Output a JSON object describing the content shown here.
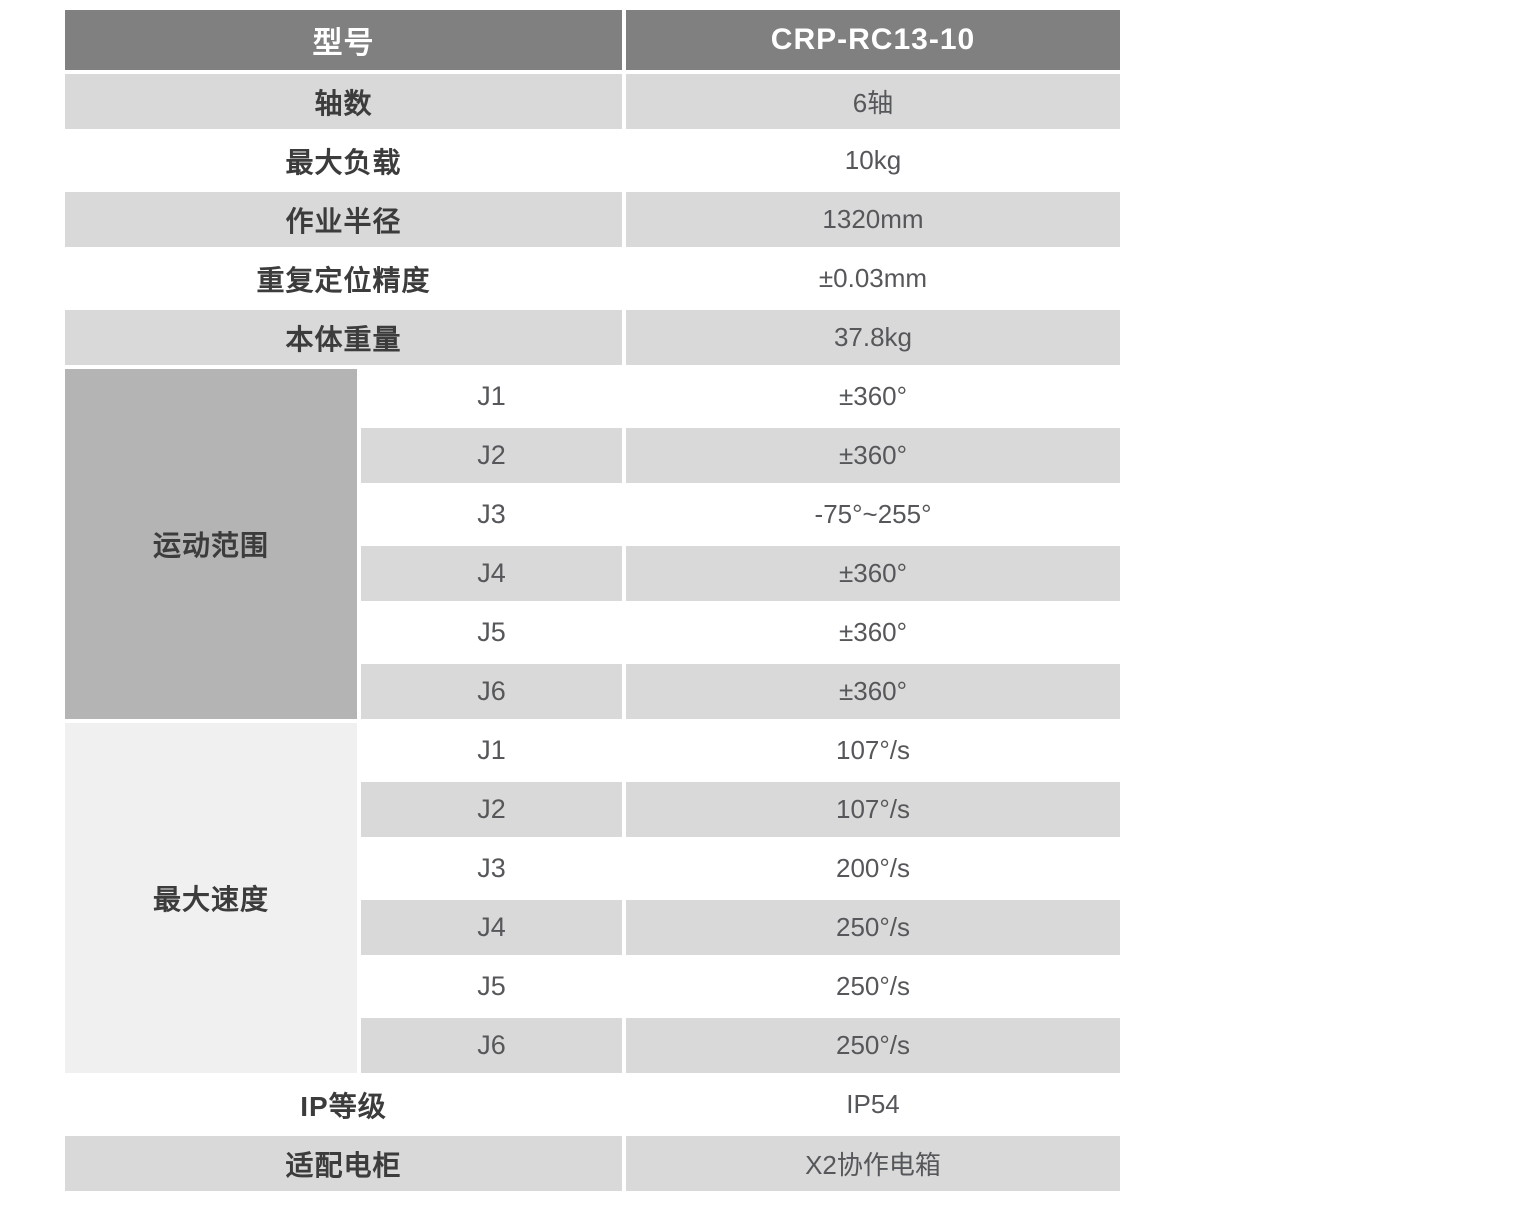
{
  "table": {
    "header": {
      "label": "型号",
      "value": "CRP-RC13-10"
    },
    "top_rows": [
      {
        "label": "轴数",
        "value": "6轴"
      },
      {
        "label": "最大负载",
        "value": "10kg"
      },
      {
        "label": "作业半径",
        "value": "1320mm"
      },
      {
        "label": "重复定位精度",
        "value": "±0.03mm"
      },
      {
        "label": "本体重量",
        "value": "37.8kg"
      }
    ],
    "motion_range": {
      "label": "运动范围",
      "rows": [
        {
          "joint": "J1",
          "value": "±360°"
        },
        {
          "joint": "J2",
          "value": "±360°"
        },
        {
          "joint": "J3",
          "value": "-75°~255°"
        },
        {
          "joint": "J4",
          "value": "±360°"
        },
        {
          "joint": "J5",
          "value": "±360°"
        },
        {
          "joint": "J6",
          "value": "±360°"
        }
      ]
    },
    "max_speed": {
      "label": "最大速度",
      "rows": [
        {
          "joint": "J1",
          "value": "107°/s"
        },
        {
          "joint": "J2",
          "value": "107°/s"
        },
        {
          "joint": "J3",
          "value": "200°/s"
        },
        {
          "joint": "J4",
          "value": "250°/s"
        },
        {
          "joint": "J5",
          "value": "250°/s"
        },
        {
          "joint": "J6",
          "value": "250°/s"
        }
      ]
    },
    "bottom_rows": [
      {
        "label": "IP等级",
        "value": "IP54"
      },
      {
        "label": "适配电柜",
        "value": "X2协作电箱"
      }
    ],
    "colors": {
      "header_bg": "#808080",
      "header_text": "#ffffff",
      "stripe_bg": "#d9d9d9",
      "white_bg": "#ffffff",
      "motion_merged_bg": "#b4b4b4",
      "speed_merged_bg": "#f0f0f0",
      "label_text": "#3c3c3c",
      "value_text": "#55575a"
    }
  }
}
